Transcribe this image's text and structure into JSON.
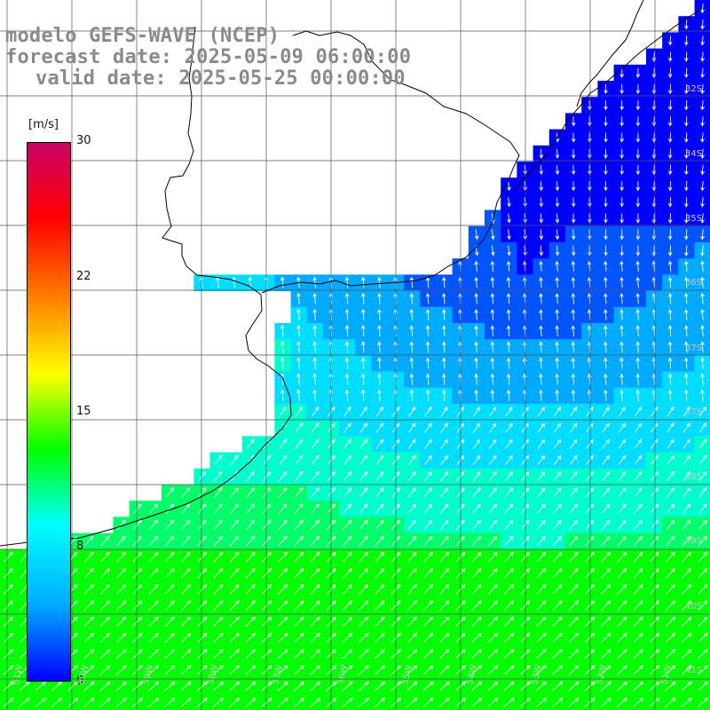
{
  "titles": {
    "line1": "modelo GEFS-WAVE (NCEP)",
    "line2": "forecast date: 2025-05-09 06:00:00",
    "line3": "valid date: 2025-05-25 00:00:00"
  },
  "legend": {
    "unit": "[m/s]",
    "ticks": [
      "30",
      "22",
      "15",
      "8",
      "0"
    ],
    "tick_values": [
      30,
      22,
      15,
      8,
      0
    ],
    "range": [
      0,
      30
    ],
    "colors": [
      "#0000ff",
      "#00aaff",
      "#00ffff",
      "#00ff00",
      "#ffff00",
      "#ff8000",
      "#ff0000",
      "#cc0066"
    ]
  },
  "map_labels": {
    "lat": [
      "32S",
      "34S",
      "35S",
      "36S",
      "37S",
      "37S",
      "38S",
      "39S",
      "40S",
      "41S"
    ],
    "lon": [
      "61W",
      "60W",
      "59W",
      "58W",
      "57W",
      "56W",
      "55W",
      "54W",
      "53W",
      "52W",
      "51W"
    ]
  },
  "colors": {
    "land": "#ffffff",
    "grid": "#555555",
    "coast": "#000000",
    "arrows": "#ffffff",
    "title_text": "#8a8a8a"
  }
}
